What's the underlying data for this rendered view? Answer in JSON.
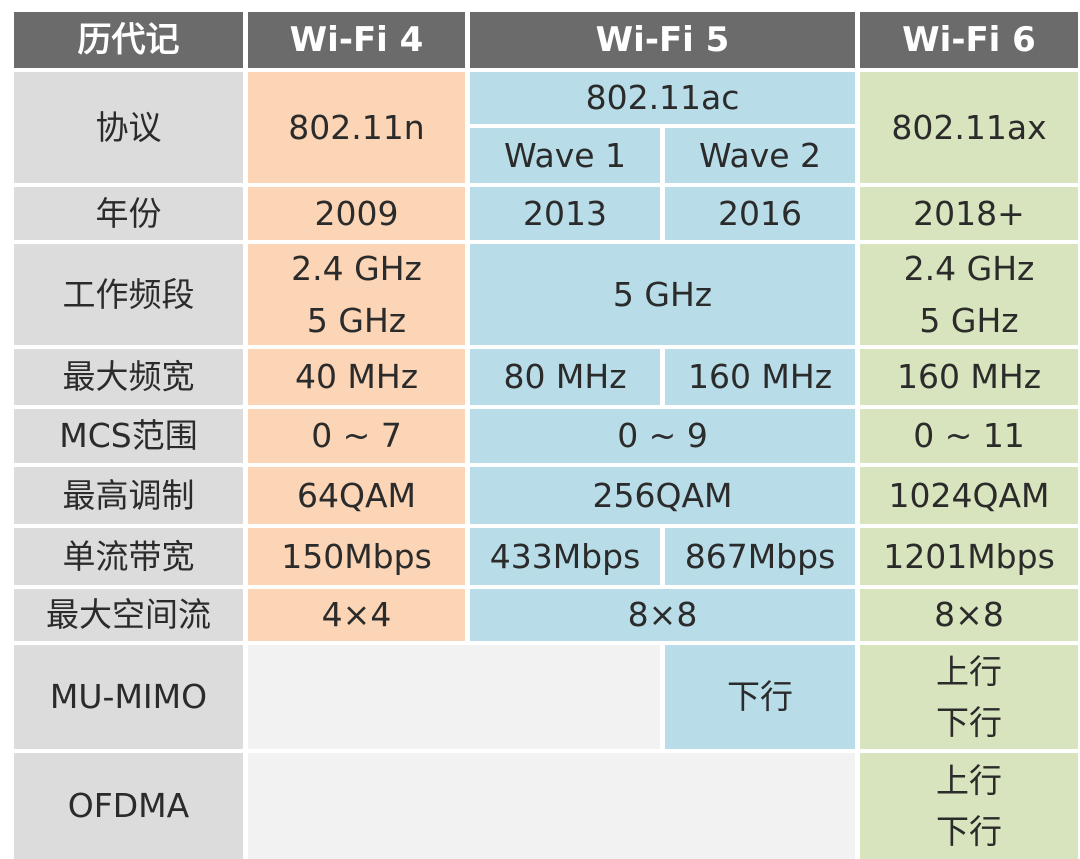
{
  "header": {
    "label": "历代记",
    "wifi4": "Wi-Fi 4",
    "wifi5": "Wi-Fi 5",
    "wifi6": "Wi-Fi 6"
  },
  "colors": {
    "header": "#6b6b6b",
    "label": "#dcdcdc",
    "wifi4": "#fbd5b5",
    "wifi5": "#b8dde8",
    "wifi6": "#d8e4bd",
    "empty": "#f2f2f2"
  },
  "rows": {
    "protocol": {
      "label": "协议",
      "wifi4": "802.11n",
      "wifi5": "802.11ac",
      "wave1": "Wave 1",
      "wave2": "Wave 2",
      "wifi6": "802.11ax"
    },
    "year": {
      "label": "年份",
      "wifi4": "2009",
      "wave1": "2013",
      "wave2": "2016",
      "wifi6": "2018+"
    },
    "band": {
      "label": "工作频段",
      "wifi4": [
        "2.4 GHz",
        "5 GHz"
      ],
      "wifi5": "5 GHz",
      "wifi6": [
        "2.4 GHz",
        "5 GHz"
      ]
    },
    "bandwidth": {
      "label": "最大频宽",
      "wifi4": "40 MHz",
      "wave1": "80 MHz",
      "wave2": "160 MHz",
      "wifi6": "160 MHz"
    },
    "mcs": {
      "label": "MCS范围",
      "wifi4": "0 ~ 7",
      "wifi5": "0 ~ 9",
      "wifi6": "0 ~ 11"
    },
    "modulation": {
      "label": "最高调制",
      "wifi4": "64QAM",
      "wifi5": "256QAM",
      "wifi6": "1024QAM"
    },
    "stream_rate": {
      "label": "单流带宽",
      "wifi4": "150Mbps",
      "wave1": "433Mbps",
      "wave2": "867Mbps",
      "wifi6": "1201Mbps"
    },
    "spatial": {
      "label": "最大空间流",
      "wifi4": "4×4",
      "wifi5": "8×8",
      "wifi6": "8×8"
    },
    "mumimo": {
      "label": "MU-MIMO",
      "wave2": "下行",
      "wifi6": [
        "上行",
        "下行"
      ]
    },
    "ofdma": {
      "label": "OFDMA",
      "wifi6": [
        "上行",
        "下行"
      ]
    }
  }
}
